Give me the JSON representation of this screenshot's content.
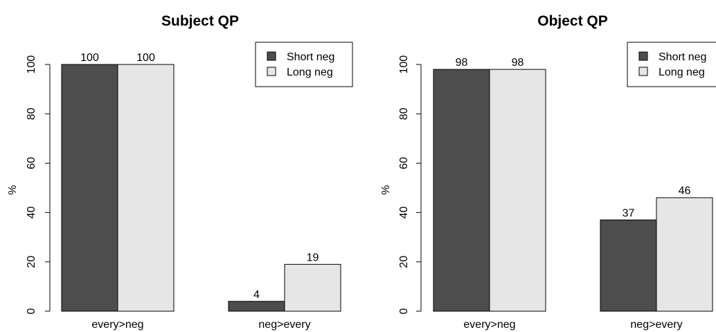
{
  "chart_data": [
    {
      "type": "bar",
      "title": "Subject QP",
      "xlabel": "",
      "ylabel": "%",
      "ylim": [
        0,
        100
      ],
      "yticks": [
        0,
        20,
        40,
        60,
        80,
        100
      ],
      "categories": [
        "every>neg",
        "neg>every"
      ],
      "series": [
        {
          "name": "Short neg",
          "color": "#4d4d4d",
          "values": [
            100,
            4
          ]
        },
        {
          "name": "Long neg",
          "color": "#e6e6e6",
          "values": [
            100,
            19
          ]
        }
      ],
      "legend": "top-right",
      "grid": false
    },
    {
      "type": "bar",
      "title": "Object QP",
      "xlabel": "",
      "ylabel": "%",
      "ylim": [
        0,
        100
      ],
      "yticks": [
        0,
        20,
        40,
        60,
        80,
        100
      ],
      "categories": [
        "every>neg",
        "neg>every"
      ],
      "series": [
        {
          "name": "Short neg",
          "color": "#4d4d4d",
          "values": [
            98,
            37
          ]
        },
        {
          "name": "Long neg",
          "color": "#e6e6e6",
          "values": [
            98,
            46
          ]
        }
      ],
      "legend": "top-right",
      "grid": false
    }
  ]
}
